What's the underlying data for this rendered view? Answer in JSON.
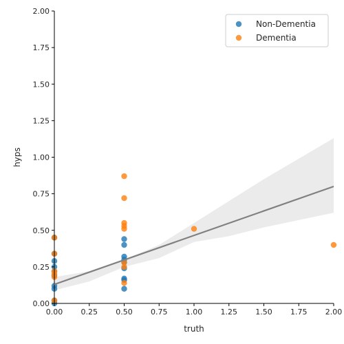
{
  "chart_data": {
    "type": "scatter",
    "xlabel": "truth",
    "ylabel": "hyps",
    "xlim": [
      0,
      2
    ],
    "ylim": [
      0,
      2
    ],
    "xticks": [
      "0.00",
      "0.25",
      "0.50",
      "0.75",
      "1.00",
      "1.25",
      "1.50",
      "1.75",
      "2.00"
    ],
    "yticks": [
      "0.00",
      "0.25",
      "0.50",
      "0.75",
      "1.00",
      "1.25",
      "1.50",
      "1.75",
      "2.00"
    ],
    "legend_position": "top-right",
    "grid": false,
    "series": [
      {
        "name": "Non-Dementia",
        "color": "#1f77b4",
        "points": [
          [
            0,
            0.45
          ],
          [
            0,
            0.34
          ],
          [
            0,
            0.29
          ],
          [
            0,
            0.25
          ],
          [
            0,
            0.22
          ],
          [
            0,
            0.19
          ],
          [
            0,
            0.12
          ],
          [
            0,
            0.1
          ],
          [
            0,
            0.02
          ],
          [
            0,
            0.0
          ],
          [
            0.5,
            0.44
          ],
          [
            0.5,
            0.4
          ],
          [
            0.5,
            0.32
          ],
          [
            0.5,
            0.3
          ],
          [
            0.5,
            0.28
          ],
          [
            0.5,
            0.24
          ],
          [
            0.5,
            0.17
          ],
          [
            0.5,
            0.16
          ],
          [
            0.5,
            0.1
          ]
        ]
      },
      {
        "name": "Dementia",
        "color": "#ff7f0e",
        "points": [
          [
            0,
            0.45
          ],
          [
            0,
            0.34
          ],
          [
            0,
            0.22
          ],
          [
            0,
            0.2
          ],
          [
            0,
            0.18
          ],
          [
            0,
            0.02
          ],
          [
            0.5,
            0.87
          ],
          [
            0.5,
            0.72
          ],
          [
            0.5,
            0.55
          ],
          [
            0.5,
            0.53
          ],
          [
            0.5,
            0.51
          ],
          [
            0.5,
            0.28
          ],
          [
            0.5,
            0.25
          ],
          [
            0.5,
            0.14
          ],
          [
            1.0,
            0.51
          ],
          [
            2.0,
            0.4
          ]
        ]
      }
    ],
    "regression": {
      "color": "#808080",
      "band_color": "#ebebeb",
      "line": [
        [
          0,
          0.13
        ],
        [
          2,
          0.8
        ]
      ],
      "ci_upper": [
        [
          0,
          0.18
        ],
        [
          0.25,
          0.22
        ],
        [
          0.5,
          0.3
        ],
        [
          0.75,
          0.4
        ],
        [
          1.0,
          0.55
        ],
        [
          1.25,
          0.7
        ],
        [
          1.5,
          0.85
        ],
        [
          1.75,
          0.99
        ],
        [
          2.0,
          1.13
        ]
      ],
      "ci_lower": [
        [
          0,
          0.09
        ],
        [
          0.25,
          0.15
        ],
        [
          0.5,
          0.25
        ],
        [
          0.75,
          0.31
        ],
        [
          1.0,
          0.42
        ],
        [
          1.25,
          0.46
        ],
        [
          1.5,
          0.52
        ],
        [
          1.75,
          0.57
        ],
        [
          2.0,
          0.62
        ]
      ]
    }
  }
}
